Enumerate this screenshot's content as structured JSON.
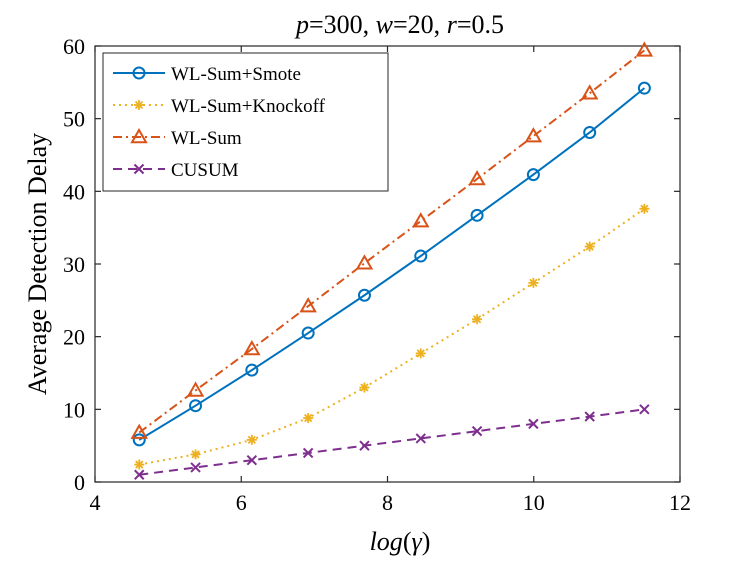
{
  "chart_data": {
    "type": "line",
    "title": {
      "p_symbol": "p",
      "p_value": "=300, ",
      "w_symbol": "w",
      "w_value": "=20, ",
      "r_symbol": "r",
      "r_value": "=0.5"
    },
    "xlabel": {
      "italic": "log",
      "paren_open": "(",
      "symbol": "γ",
      "paren_close": ")"
    },
    "ylabel": "Average Detection Delay",
    "xlim": [
      4,
      12
    ],
    "ylim": [
      0,
      60
    ],
    "xticks": [
      4,
      6,
      8,
      10,
      12
    ],
    "yticks": [
      0,
      10,
      20,
      30,
      40,
      50,
      60
    ],
    "grid": false,
    "legend_position": "top-left",
    "x": [
      4.605,
      5.375,
      6.145,
      6.915,
      7.685,
      8.455,
      9.225,
      9.995,
      10.765,
      11.513
    ],
    "series": [
      {
        "name": "WL-Sum+Smote",
        "color": "#0072BD",
        "marker": "circle",
        "line_style": "solid",
        "values": [
          5.8,
          10.5,
          15.4,
          20.5,
          25.7,
          31.1,
          36.7,
          42.3,
          48.1,
          54.2
        ]
      },
      {
        "name": "WL-Sum+Knockoff",
        "color": "#EDB120",
        "marker": "asterisk",
        "line_style": "dotted",
        "values": [
          2.4,
          3.8,
          5.8,
          8.8,
          13.0,
          17.7,
          22.4,
          27.4,
          32.4,
          37.6
        ]
      },
      {
        "name": "WL-Sum",
        "color": "#D95319",
        "marker": "triangle",
        "line_style": "dash-dot",
        "values": [
          6.8,
          12.6,
          18.3,
          24.2,
          30.1,
          35.9,
          41.7,
          47.6,
          53.5,
          59.4
        ]
      },
      {
        "name": "CUSUM",
        "color": "#7E2F8E",
        "marker": "x",
        "line_style": "dashed",
        "values": [
          1.0,
          2.0,
          3.0,
          4.0,
          5.0,
          6.0,
          7.0,
          8.0,
          9.0,
          10.0
        ]
      }
    ]
  }
}
